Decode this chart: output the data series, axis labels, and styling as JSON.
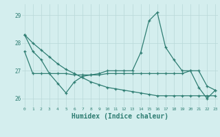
{
  "x": [
    0,
    1,
    2,
    3,
    4,
    5,
    6,
    7,
    8,
    9,
    10,
    11,
    12,
    13,
    14,
    15,
    16,
    17,
    18,
    19,
    20,
    21,
    22,
    23
  ],
  "y_main": [
    28.3,
    27.7,
    27.4,
    26.9,
    26.55,
    26.2,
    26.6,
    26.8,
    26.85,
    26.9,
    27.0,
    27.0,
    27.0,
    27.0,
    27.65,
    28.8,
    29.1,
    27.85,
    27.4,
    27.0,
    27.0,
    26.4,
    26.0,
    26.3
  ],
  "y_diag": [
    28.3,
    28.0,
    27.75,
    27.5,
    27.25,
    27.05,
    26.9,
    26.75,
    26.6,
    26.5,
    26.4,
    26.35,
    26.3,
    26.25,
    26.2,
    26.15,
    26.1,
    26.1,
    26.1,
    26.1,
    26.1,
    26.1,
    26.1,
    26.1
  ],
  "y_flat": [
    27.7,
    26.9,
    26.9,
    26.9,
    26.9,
    26.9,
    26.85,
    26.85,
    26.85,
    26.85,
    26.9,
    26.9,
    26.9,
    26.9,
    26.9,
    26.9,
    26.9,
    26.9,
    26.9,
    26.9,
    27.0,
    27.0,
    26.45,
    26.3
  ],
  "line_color": "#2e7d72",
  "bg_color": "#d4eeee",
  "grid_color": "#b8d8d8",
  "xlabel": "Humidex (Indice chaleur)",
  "xlabel_fontsize": 7,
  "yticks": [
    26,
    27,
    28,
    29
  ],
  "xticks": [
    0,
    1,
    2,
    3,
    4,
    5,
    6,
    7,
    8,
    9,
    10,
    11,
    12,
    13,
    14,
    15,
    16,
    17,
    18,
    19,
    20,
    21,
    22,
    23
  ],
  "ylim": [
    25.7,
    29.4
  ],
  "xlim": [
    -0.3,
    23.3
  ]
}
